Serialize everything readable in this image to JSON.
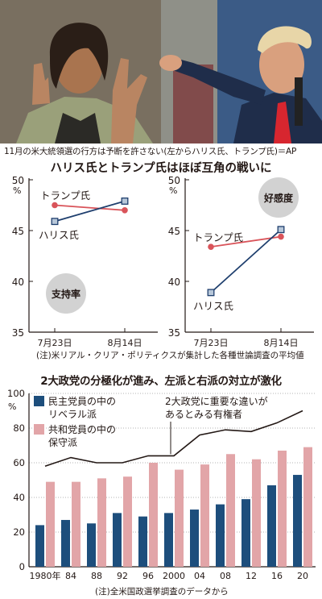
{
  "photo": {
    "caption": "11月の米大統領選の行方は予断を許さない(左からハリス氏、トランプ氏)＝AP"
  },
  "section1": {
    "title": "ハリス氏とトランプ氏はほぼ互角の戦いに",
    "note": "(注)米リアル・クリア・ポリティクスが集計した各種世論調査の平均値"
  },
  "section2": {
    "title": "2大政党の分極化が進み、左派と右派の対立が激化",
    "note": "(注)全米国政選挙調査のデータから"
  },
  "colors": {
    "harris": "#1f3f6e",
    "trump": "#d9545a",
    "democrat_bar": "#1d4e7c",
    "republican_bar": "#e2a5a8",
    "line": "#231815",
    "badge": "#d2d2d2",
    "marker_fill": "#b7c7d9"
  },
  "chart_data": [
    {
      "type": "line",
      "title": "支持率",
      "x": [
        "7月23日",
        "8月14日"
      ],
      "ylim": [
        35,
        50
      ],
      "yticks": [
        35,
        40,
        45,
        50
      ],
      "yunit": "%",
      "grid": false,
      "series": [
        {
          "name": "トランプ氏",
          "values": [
            47.5,
            47.0
          ]
        },
        {
          "name": "ハリス氏",
          "values": [
            45.9,
            47.9
          ]
        }
      ]
    },
    {
      "type": "line",
      "title": "好感度",
      "x": [
        "7月23日",
        "8月14日"
      ],
      "ylim": [
        35,
        50
      ],
      "yticks": [
        35,
        40,
        45,
        50
      ],
      "yunit": "%",
      "grid": false,
      "series": [
        {
          "name": "トランプ氏",
          "values": [
            43.4,
            44.4
          ]
        },
        {
          "name": "ハリス氏",
          "values": [
            38.9,
            45.1
          ]
        }
      ]
    },
    {
      "type": "bar",
      "x": [
        "1980年",
        "84",
        "88",
        "92",
        "96",
        "2000",
        "04",
        "08",
        "12",
        "16",
        "20"
      ],
      "ylim": [
        0,
        100
      ],
      "yticks": [
        0,
        20,
        40,
        60,
        80,
        100
      ],
      "yunit": "%",
      "grid": true,
      "legend": "top-left",
      "series": [
        {
          "name": "民主党員の中のリベラル派",
          "kind": "bar",
          "values": [
            24,
            27,
            25,
            31,
            29,
            31,
            33,
            36,
            39,
            47,
            53
          ]
        },
        {
          "name": "共和党員の中の保守派",
          "kind": "bar",
          "values": [
            49,
            49,
            51,
            52,
            60,
            56,
            59,
            65,
            62,
            67,
            69
          ]
        },
        {
          "name": "2大政党に重要な違いがあるとみる有権者",
          "kind": "line",
          "values": [
            58,
            63,
            60,
            60,
            64,
            64,
            76,
            79,
            78,
            83,
            90
          ]
        }
      ]
    }
  ]
}
